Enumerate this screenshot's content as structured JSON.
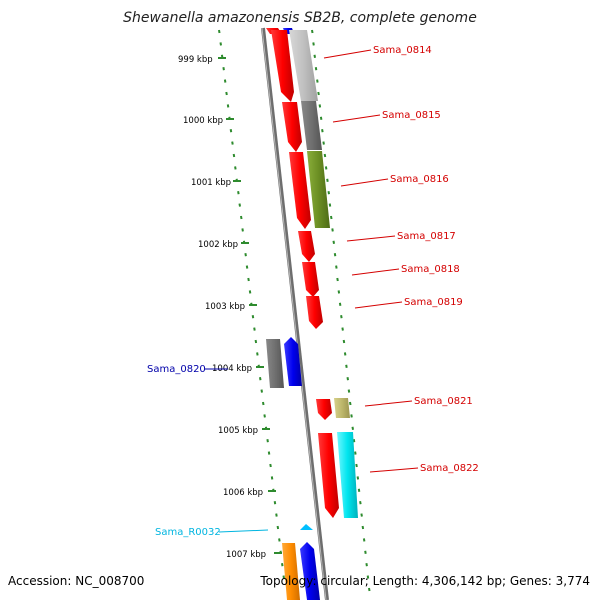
{
  "title": "Shewanella amazonensis SB2B, complete genome",
  "footer": {
    "accession": "Accession: NC_008700",
    "topology": "Topology: circular; Length: 4,306,142 bp; Genes: 3,774"
  },
  "colors": {
    "red": "#ff0000",
    "blue": "#0000ee",
    "grey_light": "#c0c0c0",
    "grey_dark": "#707070",
    "olive": "#6b8e23",
    "khaki": "#bdb76b",
    "cyan": "#00e5ee",
    "orange": "#ff8c00",
    "sky": "#00bfff",
    "tick_green": "#2e8b2e",
    "label_red": "#d40000",
    "label_blue": "#0000aa",
    "label_cyan": "#00b5e0"
  },
  "kbp_labels": [
    "999 kbp",
    "1000 kbp",
    "1001 kbp",
    "1002 kbp",
    "1003 kbp",
    "1004 kbp",
    "1005 kbp",
    "1006 kbp",
    "1007 kbp"
  ],
  "gene_labels": [
    "Sama_0814",
    "Sama_0815",
    "Sama_0816",
    "Sama_0817",
    "Sama_0818",
    "Sama_0819",
    "Sama_0820",
    "Sama_0821",
    "Sama_0822",
    "Sama_R0032"
  ]
}
